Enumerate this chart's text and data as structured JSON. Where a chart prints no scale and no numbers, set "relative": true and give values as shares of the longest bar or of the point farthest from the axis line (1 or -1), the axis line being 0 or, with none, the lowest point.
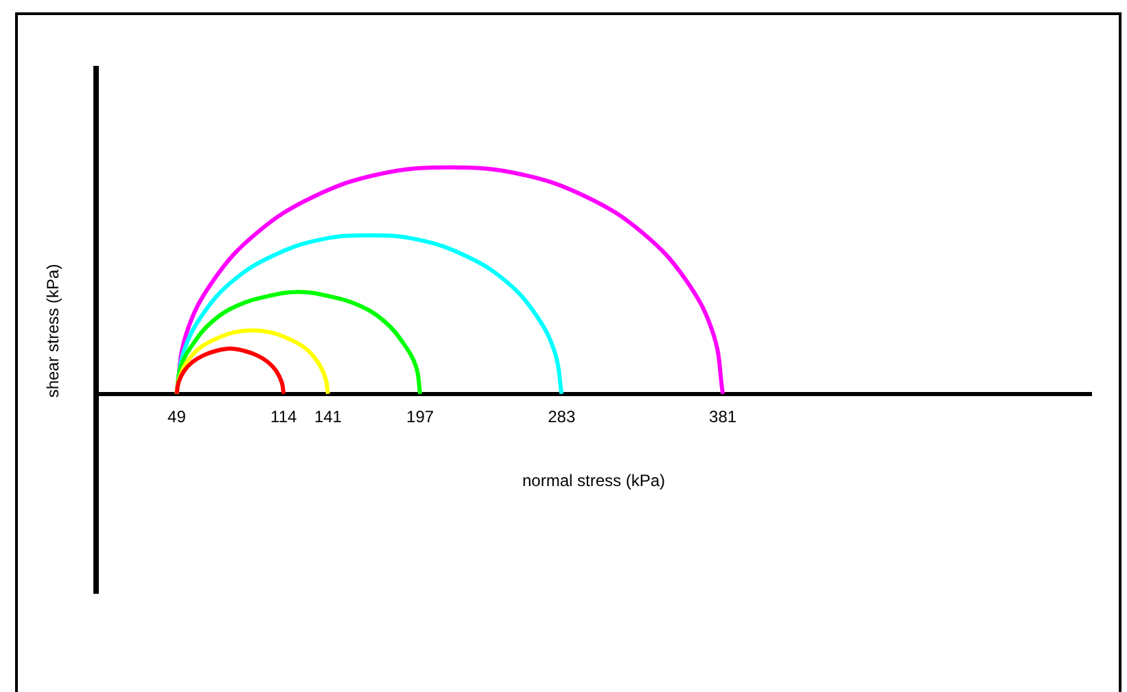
{
  "chart_data": {
    "type": "line",
    "xlabel": "normal stress (kPa)",
    "ylabel": "shear stress (kPa)",
    "relative": true,
    "xlim": [
      0,
      605
    ],
    "xticks": [
      49,
      114,
      141,
      197,
      283,
      381
    ],
    "grid": false,
    "legend": false,
    "marker": "none",
    "line_style": "solid",
    "series": [
      {
        "color": "#ff0000",
        "x": [
          49,
          50.1,
          53.4,
          58.5,
          65.3,
          73.1,
          81.5,
          89.9,
          97.8,
          104.5,
          109.6,
          112.9,
          114
        ],
        "values": [
          0,
          0.05,
          0.1,
          0.14,
          0.17,
          0.19,
          0.2,
          0.19,
          0.17,
          0.14,
          0.1,
          0.05,
          0
        ]
      },
      {
        "color": "#ffff00",
        "x": [
          49,
          50.6,
          55.2,
          62.5,
          72,
          83.1,
          95,
          106.9,
          118,
          127.5,
          134.8,
          139.4,
          141
        ],
        "values": [
          0,
          0.07,
          0.14,
          0.2,
          0.24,
          0.27,
          0.28,
          0.27,
          0.24,
          0.2,
          0.14,
          0.07,
          0
        ]
      },
      {
        "color": "#00ff00",
        "x": [
          49,
          51.5,
          58.9,
          70.7,
          86,
          103.8,
          123,
          142.2,
          160,
          175.3,
          187.1,
          194.5,
          197
        ],
        "values": [
          0,
          0.12,
          0.22,
          0.32,
          0.39,
          0.43,
          0.45,
          0.43,
          0.39,
          0.32,
          0.22,
          0.12,
          0
        ]
      },
      {
        "color": "#00ffff",
        "x": [
          49,
          53,
          64.7,
          83.3,
          107.5,
          135.7,
          166,
          196.3,
          224.5,
          248.7,
          267.3,
          279,
          283
        ],
        "values": [
          0,
          0.18,
          0.35,
          0.5,
          0.61,
          0.68,
          0.7,
          0.68,
          0.61,
          0.5,
          0.35,
          0.18,
          0
        ]
      },
      {
        "color": "#ff00ff",
        "x": [
          49,
          54.6,
          71.2,
          97.6,
          132,
          172,
          215,
          258,
          298,
          332.4,
          358.8,
          375.4,
          381
        ],
        "values": [
          0,
          0.26,
          0.5,
          0.71,
          0.87,
          0.97,
          1,
          0.97,
          0.87,
          0.71,
          0.5,
          0.26,
          0
        ]
      }
    ]
  }
}
